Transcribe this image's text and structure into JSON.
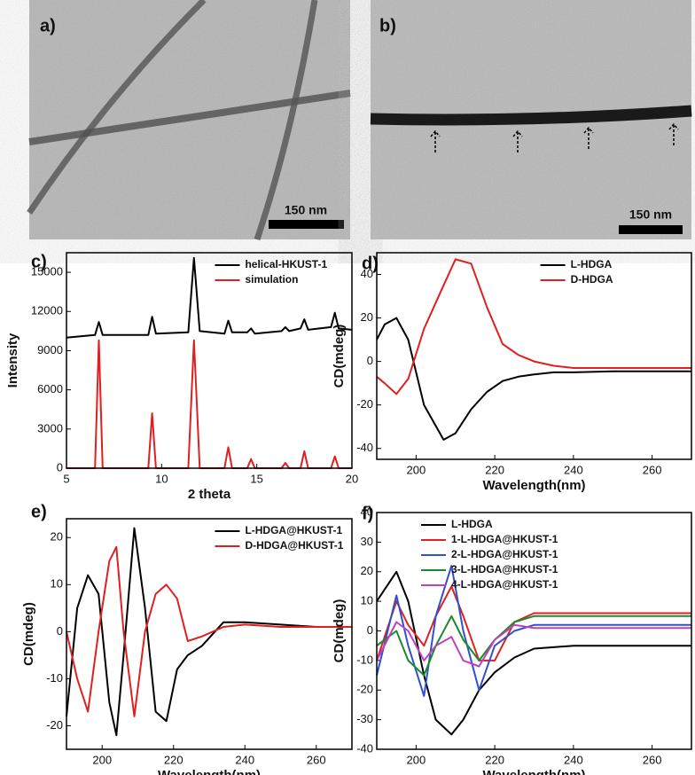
{
  "panels": [
    {
      "label": "a)",
      "scale_bar": "150 nm"
    },
    {
      "label": "b)",
      "scale_bar": "150 nm"
    }
  ],
  "chart_data": [
    {
      "type": "line",
      "label": "c)",
      "xlabel": "2 theta",
      "ylabel": "Intensity",
      "legend": "upper right",
      "xlim": [
        5,
        20
      ],
      "xticks": [
        5,
        10,
        15,
        20
      ],
      "ylim": [
        0,
        16500
      ],
      "yticks": [
        0,
        3000,
        6000,
        9000,
        12000,
        15000
      ],
      "x": [
        5,
        6.5,
        6.7,
        6.9,
        9.3,
        9.5,
        9.7,
        11.4,
        11.7,
        12.0,
        13.3,
        13.5,
        13.7,
        14.5,
        14.7,
        14.9,
        16.3,
        16.5,
        16.7,
        17.3,
        17.5,
        17.7,
        18.9,
        19.1,
        19.3,
        20
      ],
      "series": [
        {
          "name": "helical-HKUST-1",
          "color": "#000000",
          "values": [
            10000,
            10200,
            11200,
            10200,
            10200,
            11600,
            10300,
            10400,
            16100,
            10500,
            10300,
            11300,
            10400,
            10400,
            10700,
            10300,
            10500,
            10800,
            10500,
            10700,
            11400,
            10600,
            10800,
            11900,
            10700,
            10600
          ]
        },
        {
          "name": "simulation",
          "color": "#e02020",
          "values": [
            0,
            0,
            9800,
            0,
            0,
            4200,
            0,
            0,
            9800,
            0,
            0,
            1600,
            0,
            0,
            700,
            0,
            0,
            400,
            0,
            0,
            1300,
            0,
            0,
            900,
            0,
            0
          ]
        }
      ]
    },
    {
      "type": "line",
      "label": "d)",
      "xlabel": "Wavelength(nm)",
      "ylabel": "CD(mdeg)",
      "legend": "upper right",
      "xlim": [
        190,
        270
      ],
      "xticks": [
        200,
        220,
        240,
        260
      ],
      "ylim": [
        -45,
        50
      ],
      "yticks": [
        -40,
        -20,
        0,
        20,
        40
      ],
      "x": [
        190,
        192,
        195,
        198,
        202,
        207,
        210,
        214,
        218,
        222,
        226,
        230,
        235,
        240,
        250,
        260,
        270
      ],
      "series": [
        {
          "name": "L-HDGA",
          "color": "#000000",
          "values": [
            10,
            17,
            20,
            10,
            -20,
            -36,
            -33,
            -22,
            -14,
            -9,
            -7,
            -6,
            -5,
            -5,
            -4.5,
            -4.5,
            -4.5
          ]
        },
        {
          "name": "D-HDGA",
          "color": "#e02020",
          "values": [
            -7,
            -10,
            -15,
            -8,
            15,
            35,
            47,
            45,
            25,
            8,
            3,
            0,
            -2,
            -3,
            -3,
            -3,
            -3
          ]
        }
      ]
    },
    {
      "type": "line",
      "label": "e)",
      "xlabel": "Wavelength(nm)",
      "ylabel": "CD(mdeg)",
      "legend": "upper right",
      "xlim": [
        190,
        270
      ],
      "xticks": [
        200,
        220,
        240,
        260
      ],
      "ylim": [
        -25,
        24
      ],
      "yticks": [
        -20,
        -10,
        0,
        10,
        20
      ],
      "x": [
        190,
        193,
        196,
        199,
        202,
        204,
        206,
        209,
        212,
        215,
        218,
        221,
        224,
        228,
        234,
        240,
        250,
        260,
        270
      ],
      "series": [
        {
          "name": "L-HDGA@HKUST-1",
          "color": "#000000",
          "values": [
            -18,
            5,
            12,
            8,
            -15,
            -22,
            -5,
            22,
            5,
            -17,
            -19,
            -8,
            -5,
            -3,
            2,
            2,
            1.5,
            1,
            1
          ]
        },
        {
          "name": "D-HDGA@HKUST-1",
          "color": "#e02020",
          "values": [
            0,
            -10,
            -17,
            0,
            15,
            18,
            0,
            -18,
            0,
            8,
            10,
            7,
            -2,
            -1,
            1,
            1.5,
            1,
            1,
            1
          ]
        }
      ]
    },
    {
      "type": "line",
      "label": "f)",
      "xlabel": "Wavelength(nm)",
      "ylabel": "CD(mdeg)",
      "legend": "upper center",
      "xlim": [
        190,
        270
      ],
      "xticks": [
        200,
        220,
        240,
        260
      ],
      "ylim": [
        -40,
        40
      ],
      "yticks": [
        -40,
        -30,
        -20,
        -10,
        0,
        10,
        20,
        30,
        40
      ],
      "x": [
        190,
        195,
        198,
        202,
        205,
        209,
        212,
        216,
        220,
        225,
        230,
        240,
        250,
        260,
        270
      ],
      "series": [
        {
          "name": "L-HDGA",
          "color": "#000000",
          "values": [
            10,
            20,
            10,
            -15,
            -30,
            -35,
            -30,
            -20,
            -14,
            -9,
            -6,
            -5,
            -5,
            -5,
            -5
          ]
        },
        {
          "name": "1-L-HDGA@HKUST-1",
          "color": "#e02020",
          "values": [
            -10,
            10,
            2,
            -5,
            5,
            15,
            5,
            -10,
            -10,
            3,
            6,
            6,
            6,
            6,
            6
          ]
        },
        {
          "name": "2-L-HDGA@HKUST-1",
          "color": "#3050d0",
          "values": [
            -15,
            12,
            -5,
            -22,
            5,
            22,
            0,
            -20,
            -5,
            0,
            2,
            2,
            2,
            2,
            2
          ]
        },
        {
          "name": "3-L-HDGA@HKUST-1",
          "color": "#1a8a2a",
          "values": [
            -5,
            0,
            -10,
            -15,
            -5,
            5,
            -3,
            -10,
            -3,
            3,
            5,
            5,
            5,
            5,
            5
          ]
        },
        {
          "name": "4-L-HDGA@HKUST-1",
          "color": "#c040c0",
          "values": [
            -10,
            3,
            0,
            -10,
            -5,
            -2,
            -10,
            -12,
            -3,
            2,
            1,
            1,
            1,
            1,
            1
          ]
        }
      ]
    }
  ]
}
